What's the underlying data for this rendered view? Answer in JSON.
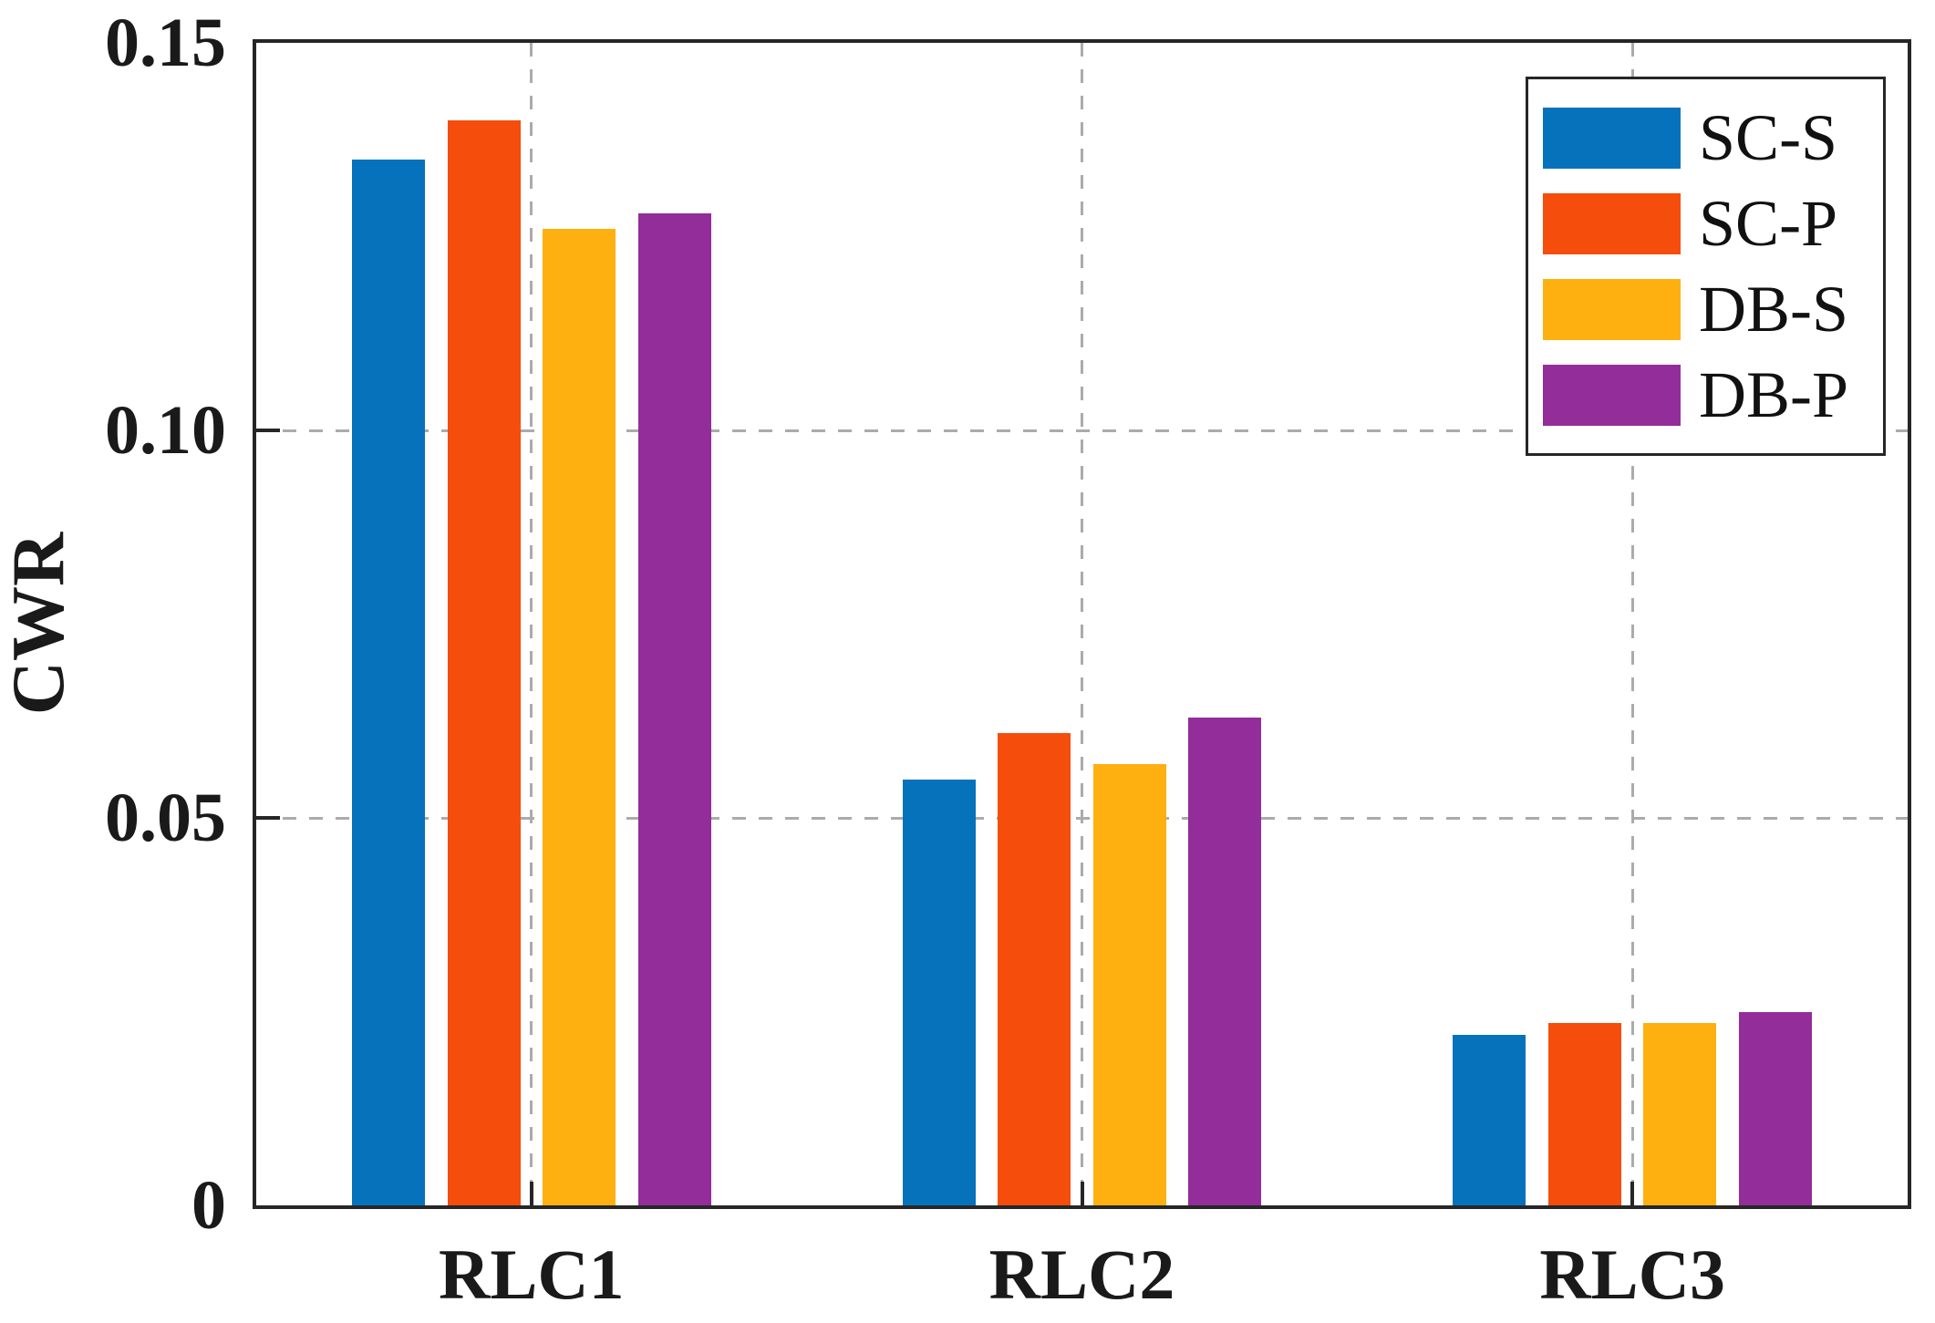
{
  "chart_data": {
    "type": "bar",
    "title": "",
    "xlabel": "",
    "ylabel": "CWR",
    "categories": [
      "RLC1",
      "RLC2",
      "RLC3"
    ],
    "series": [
      {
        "name": "SC-S",
        "color": "#0672bc",
        "values": [
          0.135,
          0.055,
          0.022
        ]
      },
      {
        "name": "SC-P",
        "color": "#f54d0b",
        "values": [
          0.14,
          0.061,
          0.0235
        ]
      },
      {
        "name": "DB-S",
        "color": "#ffb011",
        "values": [
          0.126,
          0.057,
          0.0235
        ]
      },
      {
        "name": "DB-P",
        "color": "#922d99",
        "values": [
          0.128,
          0.063,
          0.025
        ]
      }
    ],
    "ylim": [
      0,
      0.15
    ],
    "yticks": [
      0,
      0.05,
      0.1,
      0.15
    ],
    "ytick_labels": [
      "0",
      "0.05",
      "0.10",
      "0.15"
    ],
    "grid": "dashed gray, horizontal at y ticks and vertical at category centers",
    "legend_position": "top-right inside plot",
    "frame_color": "#262626",
    "grid_color": "#ababab"
  }
}
